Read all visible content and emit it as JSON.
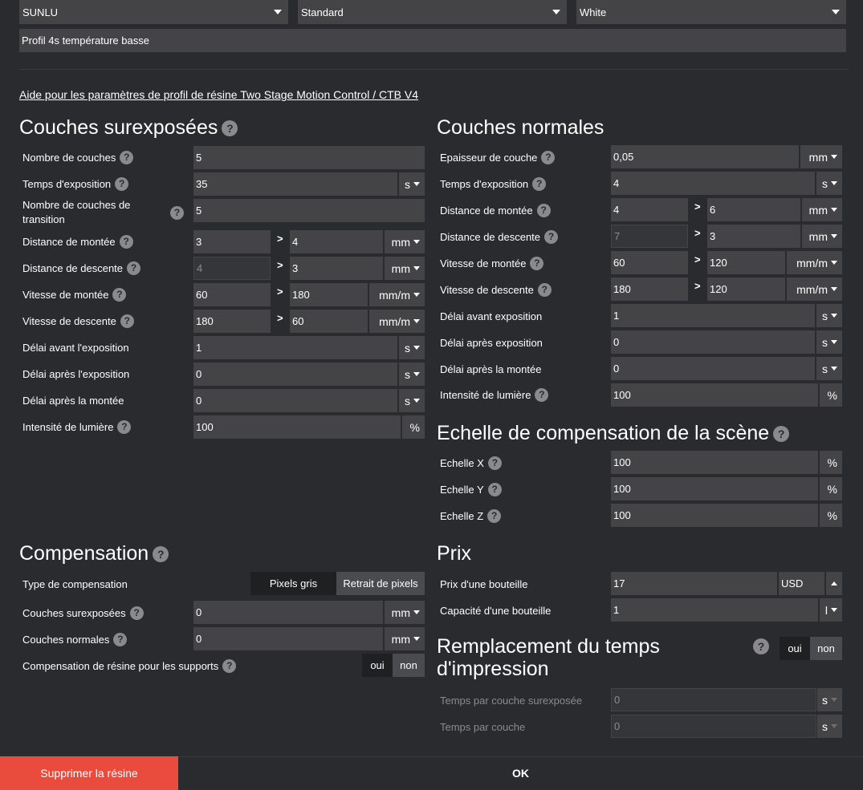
{
  "top": {
    "brand": "SUNLU",
    "type": "Standard",
    "color": "White",
    "profile_name": "Profil 4s température basse"
  },
  "help_link": "Aide pour les paramètres de profil de résine Two Stage Motion Control / CTB V4",
  "over": {
    "title": "Couches surexposées",
    "n_layers": {
      "label": "Nombre de couches",
      "value": "5"
    },
    "exposure": {
      "label": "Temps d'exposition",
      "value": "35",
      "unit": "s"
    },
    "transition": {
      "label": "Nombre de couches de transition",
      "value": "5"
    },
    "lift_dist": {
      "label": "Distance de montée",
      "v1": "3",
      "v2": "4",
      "unit": "mm"
    },
    "retract_dist": {
      "label": "Distance de descente",
      "v1": "4",
      "v2": "3",
      "unit": "mm"
    },
    "lift_speed": {
      "label": "Vitesse de montée",
      "v1": "60",
      "v2": "180",
      "unit": "mm/m"
    },
    "retract_speed": {
      "label": "Vitesse de descente",
      "v1": "180",
      "v2": "60",
      "unit": "mm/m"
    },
    "delay_before": {
      "label": "Délai avant l'exposition",
      "value": "1",
      "unit": "s"
    },
    "delay_after": {
      "label": "Délai après l'exposition",
      "value": "0",
      "unit": "s"
    },
    "delay_lift": {
      "label": "Délai après la montée",
      "value": "0",
      "unit": "s"
    },
    "light": {
      "label": "Intensité de lumière",
      "value": "100",
      "unit": "%"
    }
  },
  "normal": {
    "title": "Couches normales",
    "thickness": {
      "label": "Epaisseur de couche",
      "value": "0,05",
      "unit": "mm"
    },
    "exposure": {
      "label": "Temps d'exposition",
      "value": "4",
      "unit": "s"
    },
    "lift_dist": {
      "label": "Distance de montée",
      "v1": "4",
      "v2": "6",
      "unit": "mm"
    },
    "retract_dist": {
      "label": "Distance de descente",
      "v1": "7",
      "v2": "3",
      "unit": "mm"
    },
    "lift_speed": {
      "label": "Vitesse de montée",
      "v1": "60",
      "v2": "120",
      "unit": "mm/m"
    },
    "retract_speed": {
      "label": "Vitesse de descente",
      "v1": "180",
      "v2": "120",
      "unit": "mm/m"
    },
    "delay_before": {
      "label": "Délai avant exposition",
      "value": "1",
      "unit": "s"
    },
    "delay_after": {
      "label": "Délai après exposition",
      "value": "0",
      "unit": "s"
    },
    "delay_lift": {
      "label": "Délai après la montée",
      "value": "0",
      "unit": "s"
    },
    "light": {
      "label": "Intensité de lumière",
      "value": "100",
      "unit": "%"
    }
  },
  "scale": {
    "title": "Echelle de compensation de la scène",
    "x": {
      "label": "Echelle X",
      "value": "100",
      "unit": "%"
    },
    "y": {
      "label": "Echelle Y",
      "value": "100",
      "unit": "%"
    },
    "z": {
      "label": "Echelle Z",
      "value": "100",
      "unit": "%"
    }
  },
  "comp": {
    "title": "Compensation",
    "type_label": "Type de compensation",
    "type_opt1": "Pixels gris",
    "type_opt2": "Retrait de pixels",
    "over": {
      "label": "Couches surexposées",
      "value": "0",
      "unit": "mm"
    },
    "normal": {
      "label": "Couches normales",
      "value": "0",
      "unit": "mm"
    },
    "support_label": "Compensation de résine pour les supports",
    "yes": "oui",
    "no": "non"
  },
  "price": {
    "title": "Prix",
    "bottle_price": {
      "label": "Prix d'une bouteille",
      "value": "17",
      "currency": "USD"
    },
    "bottle_cap": {
      "label": "Capacité d'une bouteille",
      "value": "1",
      "unit": "l"
    }
  },
  "override": {
    "title_line1": "Remplacement du temps",
    "title_line2": "d'impression",
    "yes": "oui",
    "no": "non",
    "over_time": {
      "label": "Temps par couche surexposée",
      "value": "0",
      "unit": "s"
    },
    "layer_time": {
      "label": "Temps par couche",
      "value": "0",
      "unit": "s"
    }
  },
  "footer": {
    "delete": "Supprimer la résine",
    "ok": "OK"
  }
}
